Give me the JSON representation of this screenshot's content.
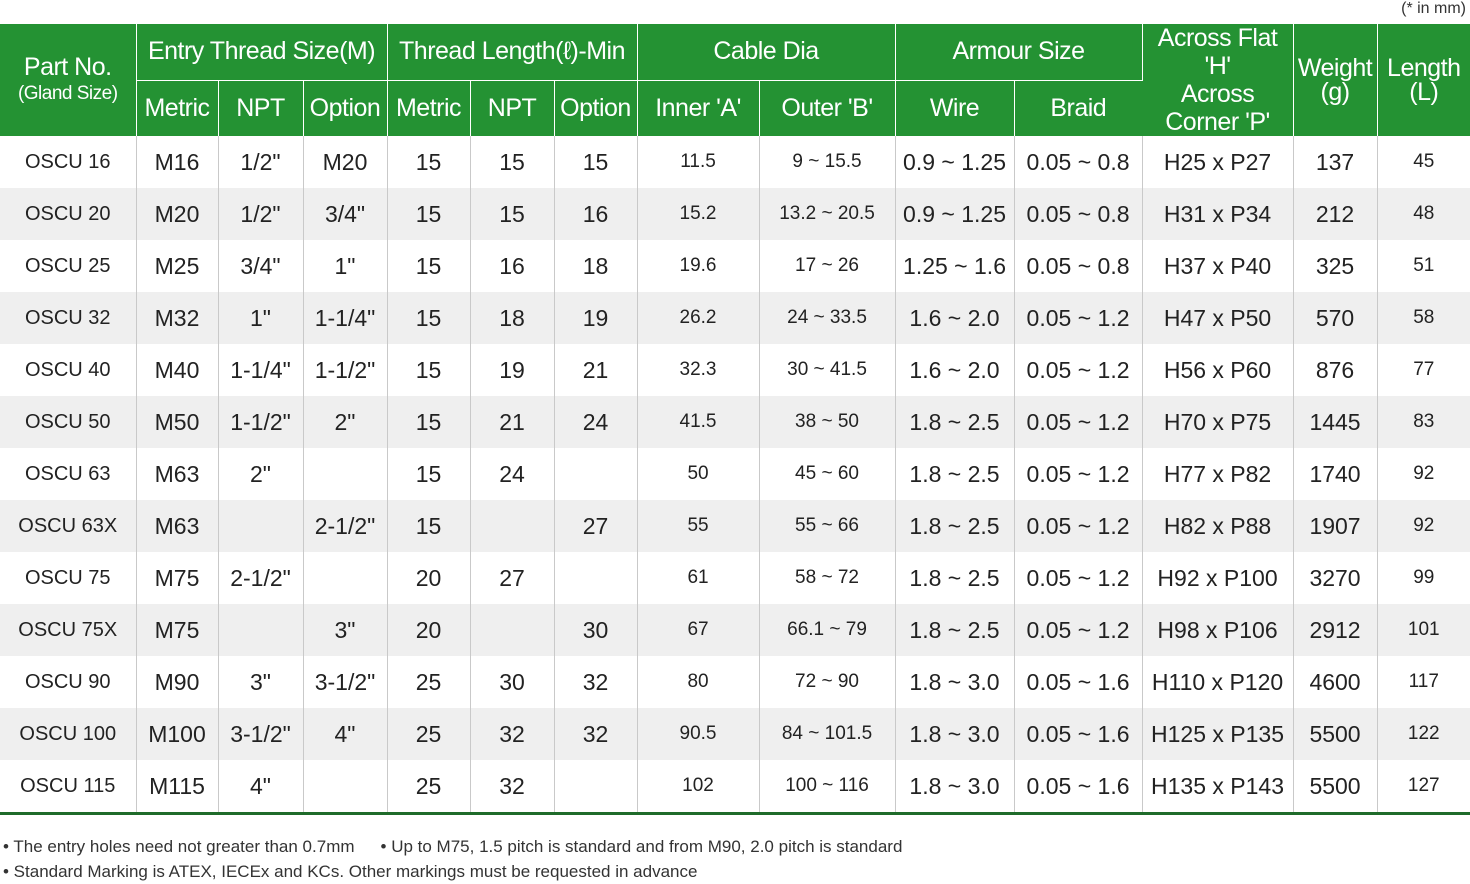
{
  "unit_note": "(* in mm)",
  "header": {
    "part_no": "Part No.",
    "part_no_sub": "(Gland Size)",
    "entry_thread": "Entry Thread Size(M)",
    "thread_length": "Thread Length(ℓ)-Min",
    "cable_dia": "Cable Dia",
    "armour_size": "Armour Size",
    "across_flat": "Across Flat 'H'",
    "across_corner": "Across Corner 'P'",
    "weight": "Weight",
    "weight_unit": "(g)",
    "length": "Length",
    "length_unit": "(L)",
    "sub": {
      "metric": "Metric",
      "npt": "NPT",
      "option": "Option",
      "inner": "Inner 'A'",
      "outer": "Outer 'B'",
      "wire": "Wire",
      "braid": "Braid"
    }
  },
  "rows": [
    {
      "part": "OSCU 16",
      "metric": "M16",
      "npt": "1/2\"",
      "option": "M20",
      "tl_metric": "15",
      "tl_npt": "15",
      "tl_option": "15",
      "inner": "11.5",
      "outer": "9 ~ 15.5",
      "wire": "0.9 ~ 1.25",
      "braid": "0.05 ~ 0.8",
      "hp": "H25 x P27",
      "weight": "137",
      "length": "45"
    },
    {
      "part": "OSCU 20",
      "metric": "M20",
      "npt": "1/2\"",
      "option": "3/4\"",
      "tl_metric": "15",
      "tl_npt": "15",
      "tl_option": "16",
      "inner": "15.2",
      "outer": "13.2 ~ 20.5",
      "wire": "0.9 ~ 1.25",
      "braid": "0.05 ~ 0.8",
      "hp": "H31 x P34",
      "weight": "212",
      "length": "48"
    },
    {
      "part": "OSCU 25",
      "metric": "M25",
      "npt": "3/4\"",
      "option": "1\"",
      "tl_metric": "15",
      "tl_npt": "16",
      "tl_option": "18",
      "inner": "19.6",
      "outer": "17 ~ 26",
      "wire": "1.25 ~ 1.6",
      "braid": "0.05 ~ 0.8",
      "hp": "H37 x P40",
      "weight": "325",
      "length": "51"
    },
    {
      "part": "OSCU 32",
      "metric": "M32",
      "npt": "1\"",
      "option": "1-1/4\"",
      "tl_metric": "15",
      "tl_npt": "18",
      "tl_option": "19",
      "inner": "26.2",
      "outer": "24 ~ 33.5",
      "wire": "1.6 ~ 2.0",
      "braid": "0.05 ~ 1.2",
      "hp": "H47 x P50",
      "weight": "570",
      "length": "58"
    },
    {
      "part": "OSCU 40",
      "metric": "M40",
      "npt": "1-1/4\"",
      "option": "1-1/2\"",
      "tl_metric": "15",
      "tl_npt": "19",
      "tl_option": "21",
      "inner": "32.3",
      "outer": "30 ~ 41.5",
      "wire": "1.6 ~ 2.0",
      "braid": "0.05 ~ 1.2",
      "hp": "H56 x P60",
      "weight": "876",
      "length": "77"
    },
    {
      "part": "OSCU 50",
      "metric": "M50",
      "npt": "1-1/2\"",
      "option": "2\"",
      "tl_metric": "15",
      "tl_npt": "21",
      "tl_option": "24",
      "inner": "41.5",
      "outer": "38 ~ 50",
      "wire": "1.8 ~ 2.5",
      "braid": "0.05 ~ 1.2",
      "hp": "H70 x P75",
      "weight": "1445",
      "length": "83"
    },
    {
      "part": "OSCU 63",
      "metric": "M63",
      "npt": "2\"",
      "option": "",
      "tl_metric": "15",
      "tl_npt": "24",
      "tl_option": "",
      "inner": "50",
      "outer": "45 ~ 60",
      "wire": "1.8 ~ 2.5",
      "braid": "0.05 ~ 1.2",
      "hp": "H77 x P82",
      "weight": "1740",
      "length": "92"
    },
    {
      "part": "OSCU 63X",
      "metric": "M63",
      "npt": "",
      "option": "2-1/2\"",
      "tl_metric": "15",
      "tl_npt": "",
      "tl_option": "27",
      "inner": "55",
      "outer": "55 ~ 66",
      "wire": "1.8 ~ 2.5",
      "braid": "0.05 ~ 1.2",
      "hp": "H82 x P88",
      "weight": "1907",
      "length": "92"
    },
    {
      "part": "OSCU 75",
      "metric": "M75",
      "npt": "2-1/2\"",
      "option": "",
      "tl_metric": "20",
      "tl_npt": "27",
      "tl_option": "",
      "inner": "61",
      "outer": "58 ~ 72",
      "wire": "1.8 ~ 2.5",
      "braid": "0.05 ~ 1.2",
      "hp": "H92 x P100",
      "weight": "3270",
      "length": "99"
    },
    {
      "part": "OSCU 75X",
      "metric": "M75",
      "npt": "",
      "option": "3\"",
      "tl_metric": "20",
      "tl_npt": "",
      "tl_option": "30",
      "inner": "67",
      "outer": "66.1 ~ 79",
      "wire": "1.8 ~ 2.5",
      "braid": "0.05 ~ 1.2",
      "hp": "H98 x P106",
      "weight": "2912",
      "length": "101"
    },
    {
      "part": "OSCU 90",
      "metric": "M90",
      "npt": "3\"",
      "option": "3-1/2\"",
      "tl_metric": "25",
      "tl_npt": "30",
      "tl_option": "32",
      "inner": "80",
      "outer": "72 ~ 90",
      "wire": "1.8 ~ 3.0",
      "braid": "0.05 ~ 1.6",
      "hp": "H110 x P120",
      "weight": "4600",
      "length": "117"
    },
    {
      "part": "OSCU 100",
      "metric": "M100",
      "npt": "3-1/2\"",
      "option": "4\"",
      "tl_metric": "25",
      "tl_npt": "32",
      "tl_option": "32",
      "inner": "90.5",
      "outer": "84 ~ 101.5",
      "wire": "1.8 ~ 3.0",
      "braid": "0.05 ~ 1.6",
      "hp": "H125 x P135",
      "weight": "5500",
      "length": "122"
    },
    {
      "part": "OSCU 115",
      "metric": "M115",
      "npt": "4\"",
      "option": "",
      "tl_metric": "25",
      "tl_npt": "32",
      "tl_option": "",
      "inner": "102",
      "outer": "100 ~ 116",
      "wire": "1.8 ~ 3.0",
      "braid": "0.05 ~ 1.6",
      "hp": "H135 x P143",
      "weight": "5500",
      "length": "127"
    }
  ],
  "notes": {
    "note1": "• The entry holes need not greater than 0.7mm",
    "note2": "• Up to M75, 1.5 pitch is standard and from M90, 2.0 pitch is standard",
    "note3": "• Standard Marking is ATEX, IECEx and KCs. Other markings must be requested in advance"
  },
  "colors": {
    "header_green": "#249233",
    "row_alt": "#efefef"
  }
}
